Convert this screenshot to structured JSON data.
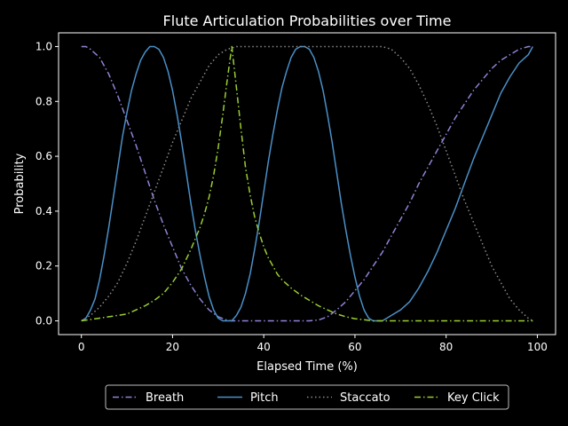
{
  "chart_data": {
    "type": "line",
    "title": "Flute Articulation Probabilities over Time",
    "xlabel": "Elapsed Time (%)",
    "ylabel": "Probability",
    "xlim": [
      -5,
      104
    ],
    "ylim": [
      -0.05,
      1.05
    ],
    "xticks": [
      0,
      20,
      40,
      60,
      80,
      100
    ],
    "yticks": [
      0.0,
      0.2,
      0.4,
      0.6,
      0.8,
      1.0
    ],
    "xtick_labels": [
      "0",
      "20",
      "40",
      "60",
      "80",
      "100"
    ],
    "ytick_labels": [
      "0.0",
      "0.2",
      "0.4",
      "0.6",
      "0.8",
      "1.0"
    ],
    "grid": false,
    "legend_position": "bottom-center",
    "background": "#000000",
    "series": [
      {
        "name": "Breath",
        "color": "#8f83d6",
        "dash": "dashdot",
        "x": [
          0,
          1,
          2,
          4,
          6,
          8,
          10,
          12,
          14,
          16,
          18,
          20,
          22,
          24,
          26,
          28,
          30,
          32,
          33,
          40,
          50,
          52,
          54,
          56,
          58,
          60,
          62,
          64,
          66,
          68,
          70,
          72,
          74,
          76,
          78,
          80,
          82,
          84,
          86,
          88,
          90,
          92,
          94,
          96,
          98,
          99
        ],
        "y": [
          1.0,
          1.0,
          0.99,
          0.96,
          0.9,
          0.82,
          0.73,
          0.64,
          0.54,
          0.44,
          0.35,
          0.27,
          0.19,
          0.13,
          0.08,
          0.04,
          0.015,
          0.002,
          0.0,
          0.0,
          0.0,
          0.003,
          0.015,
          0.04,
          0.07,
          0.11,
          0.15,
          0.2,
          0.25,
          0.31,
          0.37,
          0.43,
          0.5,
          0.56,
          0.62,
          0.68,
          0.74,
          0.79,
          0.84,
          0.88,
          0.92,
          0.95,
          0.97,
          0.99,
          1.0,
          1.0
        ]
      },
      {
        "name": "Pitch",
        "color": "#4a90c8",
        "dash": "solid",
        "x": [
          0,
          1,
          2,
          3,
          4,
          5,
          6,
          7,
          8,
          9,
          10,
          11,
          12,
          13,
          14,
          15,
          16,
          17,
          18,
          19,
          20,
          21,
          22,
          23,
          24,
          25,
          26,
          27,
          28,
          29,
          30,
          31,
          32,
          33,
          34,
          35,
          36,
          37,
          38,
          39,
          40,
          41,
          42,
          43,
          44,
          45,
          46,
          47,
          48,
          49,
          50,
          51,
          52,
          53,
          54,
          55,
          56,
          57,
          58,
          59,
          60,
          61,
          62,
          63,
          64,
          65,
          66,
          67,
          68,
          70,
          72,
          74,
          76,
          78,
          80,
          82,
          84,
          86,
          88,
          90,
          92,
          94,
          96,
          98,
          99
        ],
        "y": [
          0.0,
          0.01,
          0.04,
          0.08,
          0.15,
          0.24,
          0.34,
          0.45,
          0.56,
          0.67,
          0.76,
          0.84,
          0.9,
          0.95,
          0.98,
          1.0,
          1.0,
          0.99,
          0.96,
          0.91,
          0.84,
          0.75,
          0.65,
          0.54,
          0.43,
          0.33,
          0.24,
          0.16,
          0.09,
          0.04,
          0.01,
          0.0,
          0.0,
          0.0,
          0.02,
          0.05,
          0.1,
          0.17,
          0.26,
          0.36,
          0.47,
          0.58,
          0.68,
          0.77,
          0.85,
          0.91,
          0.96,
          0.99,
          1.0,
          1.0,
          0.99,
          0.96,
          0.91,
          0.84,
          0.75,
          0.65,
          0.54,
          0.43,
          0.33,
          0.24,
          0.16,
          0.09,
          0.04,
          0.01,
          0.0,
          0.0,
          0.0,
          0.01,
          0.02,
          0.04,
          0.07,
          0.12,
          0.18,
          0.25,
          0.33,
          0.41,
          0.5,
          0.59,
          0.67,
          0.75,
          0.83,
          0.89,
          0.94,
          0.97,
          1.0
        ]
      },
      {
        "name": "Staccato",
        "color": "#8c8c8c",
        "dash": "dotted",
        "x": [
          0,
          2,
          4,
          6,
          8,
          10,
          12,
          14,
          16,
          18,
          20,
          22,
          24,
          26,
          28,
          30,
          32,
          34,
          36,
          40,
          50,
          60,
          66,
          68,
          70,
          72,
          74,
          76,
          78,
          80,
          82,
          84,
          86,
          88,
          90,
          92,
          94,
          96,
          98,
          99
        ],
        "y": [
          0.0,
          0.02,
          0.05,
          0.09,
          0.14,
          0.21,
          0.29,
          0.38,
          0.47,
          0.56,
          0.65,
          0.73,
          0.81,
          0.87,
          0.93,
          0.97,
          0.99,
          1.0,
          1.0,
          1.0,
          1.0,
          1.0,
          1.0,
          0.99,
          0.96,
          0.92,
          0.86,
          0.79,
          0.71,
          0.62,
          0.53,
          0.44,
          0.36,
          0.28,
          0.2,
          0.14,
          0.08,
          0.04,
          0.01,
          0.0
        ]
      },
      {
        "name": "Key Click",
        "color": "#9acd32",
        "dash": "dashdot",
        "x": [
          0,
          2,
          4,
          6,
          8,
          10,
          12,
          14,
          16,
          18,
          20,
          22,
          24,
          26,
          27,
          28,
          29,
          30,
          31,
          32,
          33,
          34,
          35,
          36,
          37,
          38,
          39,
          40,
          41,
          42,
          43,
          44,
          46,
          48,
          50,
          52,
          54,
          56,
          58,
          60,
          62,
          64,
          70,
          80,
          90,
          99
        ],
        "y": [
          0.0,
          0.005,
          0.01,
          0.015,
          0.02,
          0.025,
          0.04,
          0.055,
          0.075,
          0.1,
          0.14,
          0.19,
          0.26,
          0.34,
          0.39,
          0.45,
          0.53,
          0.63,
          0.75,
          0.88,
          1.0,
          0.85,
          0.7,
          0.56,
          0.46,
          0.38,
          0.32,
          0.27,
          0.23,
          0.2,
          0.17,
          0.15,
          0.12,
          0.095,
          0.075,
          0.055,
          0.04,
          0.025,
          0.015,
          0.008,
          0.004,
          0.0,
          0.0,
          0.0,
          0.0,
          0.0
        ]
      }
    ]
  }
}
